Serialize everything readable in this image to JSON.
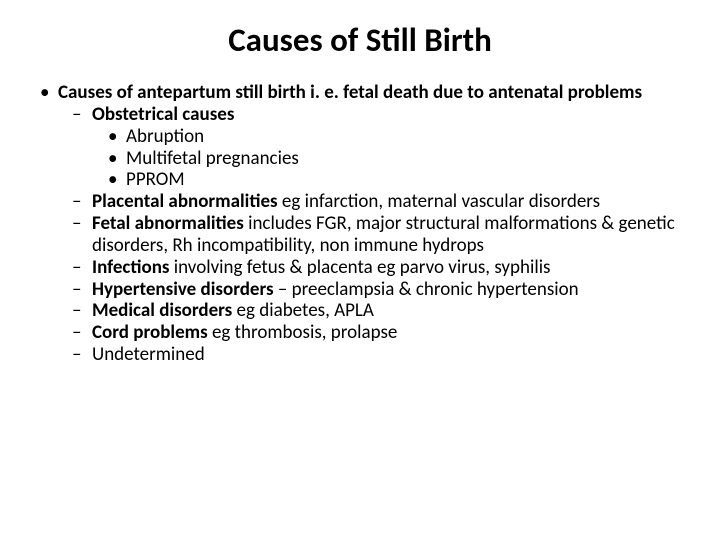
{
  "title": {
    "text": "Causes of Still Birth",
    "fontsize": 33,
    "color": "#000000"
  },
  "body_fontsize": 19,
  "body_color": "#000000",
  "content": {
    "lvl1_bold": "Causes of antepartum still birth i. e. fetal death due to antenatal problems",
    "obstetrical": {
      "head": "Obstetrical causes",
      "items": [
        "Abruption",
        "Multifetal pregnancies",
        "PPROM"
      ]
    },
    "placental": {
      "bold": "Placental abnormalities",
      "rest": " eg infarction, maternal vascular disorders"
    },
    "fetal": {
      "bold": "Fetal abnormalities",
      "rest": " includes FGR, major structural malformations & genetic disorders, Rh incompatibility, non immune hydrops"
    },
    "infections": {
      "bold": "Infections",
      "rest": " involving fetus & placenta eg parvo virus, syphilis"
    },
    "hypertensive": {
      "bold": "Hypertensive disorders",
      "rest": " – preeclampsia & chronic hypertension"
    },
    "medical": {
      "bold": "Medical disorders",
      "rest": " eg diabetes, APLA"
    },
    "cord": {
      "bold": "Cord problems",
      "rest": " eg  thrombosis, prolapse"
    },
    "undetermined": "Undetermined"
  }
}
